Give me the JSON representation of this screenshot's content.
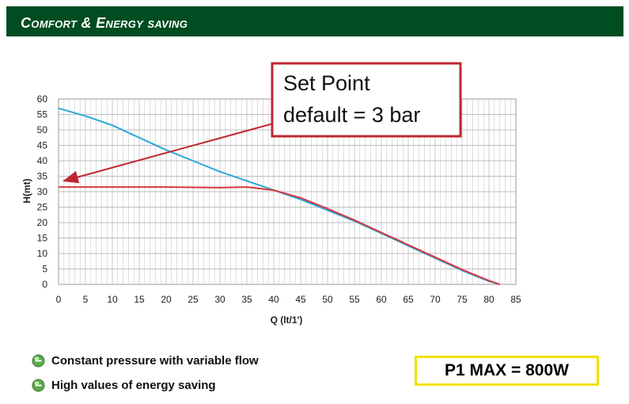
{
  "header": {
    "title": "Comfort & Energy saving",
    "color": "#004d22"
  },
  "chart_data": {
    "type": "line",
    "xlabel": "Q (lt/1')",
    "ylabel": "H(mt)",
    "xlim": [
      0,
      85
    ],
    "ylim": [
      0,
      60
    ],
    "x_ticks": [
      "0",
      "5",
      "10",
      "15",
      "20",
      "25",
      "30",
      "35",
      "40",
      "45",
      "50",
      "55",
      "60",
      "65",
      "70",
      "75",
      "80",
      "85"
    ],
    "y_ticks": [
      "0",
      "5",
      "10",
      "15",
      "20",
      "25",
      "30",
      "35",
      "40",
      "45",
      "50",
      "55",
      "60"
    ],
    "grid": true,
    "series": [
      {
        "color": "#2aa8d8",
        "points": [
          [
            0,
            57
          ],
          [
            5,
            54.5
          ],
          [
            10,
            51.5
          ],
          [
            15,
            47.5
          ],
          [
            20,
            43.5
          ],
          [
            25,
            40
          ],
          [
            30,
            36.5
          ],
          [
            35,
            33.5
          ],
          [
            40,
            30.5
          ],
          [
            45,
            27.5
          ],
          [
            50,
            24
          ],
          [
            55,
            20.5
          ],
          [
            60,
            16.5
          ],
          [
            65,
            12.5
          ],
          [
            70,
            8.5
          ],
          [
            75,
            4.5
          ],
          [
            80,
            1
          ],
          [
            82,
            0
          ]
        ]
      },
      {
        "color": "#d7373f",
        "points": [
          [
            0,
            31.5
          ],
          [
            10,
            31.5
          ],
          [
            20,
            31.5
          ],
          [
            30,
            31.3
          ],
          [
            35,
            31.5
          ],
          [
            40,
            30.5
          ],
          [
            45,
            28
          ],
          [
            50,
            24.5
          ],
          [
            55,
            20.8
          ],
          [
            60,
            16.8
          ],
          [
            65,
            12.8
          ],
          [
            70,
            8.8
          ],
          [
            75,
            4.8
          ],
          [
            80,
            1.2
          ],
          [
            82,
            0
          ]
        ]
      }
    ],
    "annotation": {
      "line1": "Set Point",
      "line2": "default = 3 bar",
      "box_color": "#c0282f",
      "arrow_to": [
        1,
        33.5
      ]
    }
  },
  "bullets": [
    {
      "label": "Constant pressure with variable flow",
      "icon": "green-sphere-icon"
    },
    {
      "label": "High values of energy saving",
      "icon": "green-sphere-icon"
    }
  ],
  "pmax": {
    "label": "P1 MAX = 800W",
    "border_color": "#f0e200"
  }
}
